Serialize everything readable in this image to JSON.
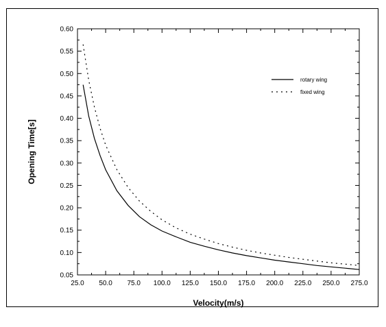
{
  "chart_data": {
    "type": "line",
    "title": "",
    "xlabel": "Velocity(m/s)",
    "ylabel": "Opening Time[s]",
    "xlim": [
      25,
      275
    ],
    "ylim": [
      0.05,
      0.6
    ],
    "x_ticks": [
      "25.0",
      "50.0",
      "75.0",
      "100.0",
      "125.0",
      "150.0",
      "175.0",
      "200.0",
      "225.0",
      "250.0",
      "275.0"
    ],
    "y_ticks": [
      "0.05",
      "0.10",
      "0.15",
      "0.20",
      "0.25",
      "0.30",
      "0.35",
      "0.40",
      "0.45",
      "0.50",
      "0.55",
      "0.60"
    ],
    "grid": false,
    "legend_position": "top-right",
    "series": [
      {
        "name": "rotary wing",
        "style": "solid",
        "color": "#000000",
        "points": [
          [
            30,
            0.475
          ],
          [
            35,
            0.405
          ],
          [
            40,
            0.355
          ],
          [
            45,
            0.317
          ],
          [
            50,
            0.285
          ],
          [
            60,
            0.238
          ],
          [
            70,
            0.205
          ],
          [
            80,
            0.18
          ],
          [
            90,
            0.162
          ],
          [
            100,
            0.148
          ],
          [
            112.5,
            0.135
          ],
          [
            125,
            0.123
          ],
          [
            137.5,
            0.114
          ],
          [
            150,
            0.106
          ],
          [
            162.5,
            0.099
          ],
          [
            175,
            0.093
          ],
          [
            187.5,
            0.088
          ],
          [
            200,
            0.083
          ],
          [
            212.5,
            0.079
          ],
          [
            225,
            0.075
          ],
          [
            237.5,
            0.071
          ],
          [
            250,
            0.068
          ],
          [
            262.5,
            0.065
          ],
          [
            275,
            0.062
          ]
        ]
      },
      {
        "name": "fixed wing",
        "style": "dashed",
        "color": "#000000",
        "points": [
          [
            30,
            0.565
          ],
          [
            35,
            0.485
          ],
          [
            40,
            0.425
          ],
          [
            45,
            0.378
          ],
          [
            50,
            0.34
          ],
          [
            60,
            0.285
          ],
          [
            70,
            0.245
          ],
          [
            80,
            0.215
          ],
          [
            90,
            0.192
          ],
          [
            100,
            0.173
          ],
          [
            112.5,
            0.155
          ],
          [
            125,
            0.141
          ],
          [
            137.5,
            0.13
          ],
          [
            150,
            0.12
          ],
          [
            162.5,
            0.112
          ],
          [
            175,
            0.105
          ],
          [
            187.5,
            0.099
          ],
          [
            200,
            0.094
          ],
          [
            212.5,
            0.089
          ],
          [
            225,
            0.085
          ],
          [
            237.5,
            0.081
          ],
          [
            250,
            0.077
          ],
          [
            262.5,
            0.074
          ],
          [
            275,
            0.071
          ]
        ]
      }
    ]
  }
}
